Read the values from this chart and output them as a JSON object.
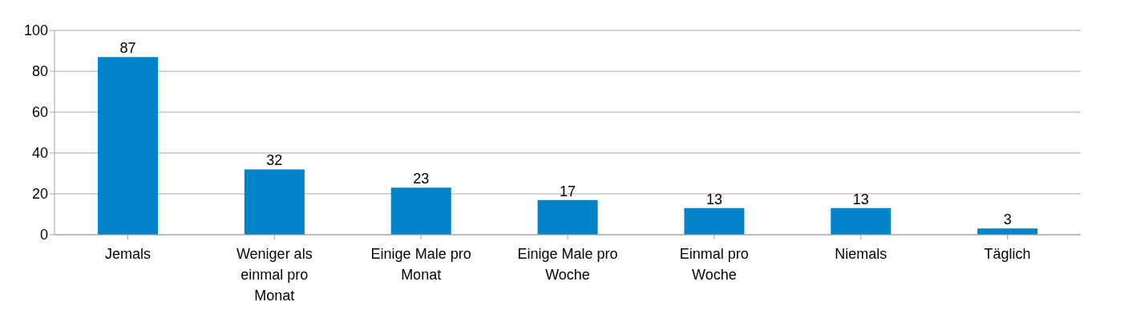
{
  "chart_data": {
    "type": "bar",
    "categories": [
      "Jemals",
      "Weniger als einmal pro Monat",
      "Einige Male pro Monat",
      "Einige Male pro Woche",
      "Einmal pro Woche",
      "Niemals",
      "Täglich"
    ],
    "values": [
      87,
      32,
      23,
      17,
      13,
      13,
      3
    ],
    "color": "#0083c9",
    "ylim": [
      0,
      100
    ],
    "yticks": [
      0,
      20,
      40,
      60,
      80,
      100
    ],
    "grid": "y",
    "data_labels": true
  }
}
